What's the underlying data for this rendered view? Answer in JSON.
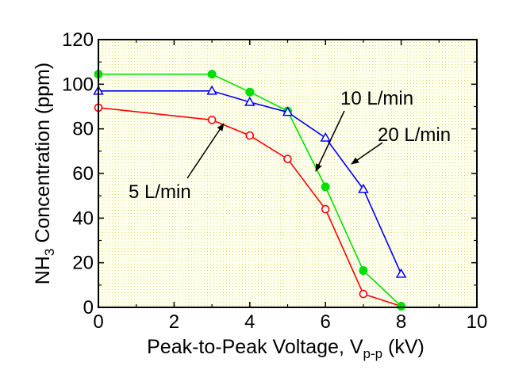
{
  "chart_data": {
    "type": "line",
    "xlabel": {
      "main": "Peak-to-Peak Voltage, V",
      "sub": "p-p",
      "unit": " (kV)"
    },
    "ylabel": {
      "pre": "NH",
      "sub": "3",
      "post": " Concentration (ppm)"
    },
    "xlim": [
      0,
      10
    ],
    "ylim": [
      0,
      120
    ],
    "xticks": [
      0,
      2,
      4,
      6,
      8,
      10
    ],
    "yticks": [
      0,
      20,
      40,
      60,
      80,
      100,
      120
    ],
    "background_color": "#ffffee",
    "series": [
      {
        "name": "5 L/min",
        "color": "#ff0000",
        "marker": "open-circle",
        "x": [
          0,
          3,
          4,
          5,
          6,
          7,
          8
        ],
        "y": [
          89.5,
          84,
          77,
          66.5,
          44,
          6,
          0.5
        ]
      },
      {
        "name": "10 L/min",
        "color": "#00e000",
        "marker": "filled-circle",
        "x": [
          0,
          3,
          4,
          5,
          6,
          7,
          8
        ],
        "y": [
          104.5,
          104.5,
          96.5,
          88,
          54,
          16.5,
          0.5
        ]
      },
      {
        "name": "20 L/min",
        "color": "#0000ff",
        "marker": "open-triangle",
        "x": [
          0,
          3,
          4,
          5,
          6,
          7,
          8
        ],
        "y": [
          97,
          97,
          92,
          87.5,
          76,
          53,
          15
        ]
      }
    ],
    "annotations": [
      {
        "text": "5 L/min",
        "arrow_to": [
          3.4,
          82
        ]
      },
      {
        "text": "10 L/min",
        "arrow_to": [
          5.75,
          62
        ]
      },
      {
        "text": "20 L/min",
        "arrow_to": [
          6.85,
          57
        ]
      }
    ]
  }
}
